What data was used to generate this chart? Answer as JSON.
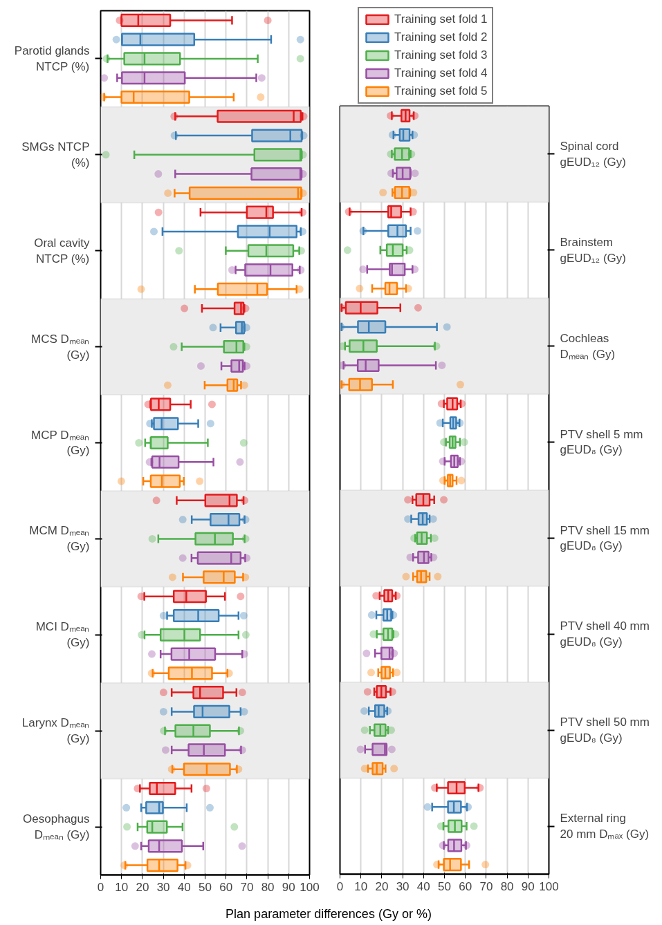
{
  "chart_data": [
    {
      "type": "box",
      "orientation": "horizontal",
      "xlabel": "Plan parameter differences (Gy or %)",
      "categories": [
        "Parotid glands\nNTCP (%)",
        "SMGs NTCP\n(%)",
        "Oral cavity\nNTCP (%)",
        "MCS Dₘₑₐₙ\n(Gy)",
        "MCP Dₘₑₐₙ\n(Gy)",
        "MCM Dₘₑₐₙ\n(Gy)",
        "MCI Dₘₑₐₙ\n(Gy)",
        "Larynx Dₘₑₐₙ\n(Gy)",
        "Oesophagus\nDₘₑₐₙ (Gy)"
      ],
      "xlim": [
        0,
        100
      ],
      "xticks": [
        0,
        10,
        20,
        30,
        40,
        50,
        60,
        70,
        80,
        90,
        100
      ],
      "grid": "x",
      "series": [
        {
          "color": "#e41a1c",
          "boxes": [
            {
              "low": 10.0,
              "q1": 10.0,
              "median": 18.0,
              "q3": 33.3,
              "high": 62.9,
              "outliers": [
                9.1,
                80.0
              ]
            },
            {
              "low": 35.7,
              "q1": 56.0,
              "median": 92.4,
              "q3": 95.8,
              "high": 96.6,
              "outliers": [
                35.2,
                97.2
              ]
            },
            {
              "low": 47.8,
              "q1": 70.0,
              "median": 79.3,
              "q3": 82.5,
              "high": 96.2,
              "outliers": [
                27.7,
                96.7
              ]
            },
            {
              "low": 48.5,
              "q1": 64.1,
              "median": 67.2,
              "q3": 68.4,
              "high": 68.8,
              "outliers": [
                40.1,
                69.4
              ]
            },
            {
              "low": 23.8,
              "q1": 24.1,
              "median": 27.8,
              "q3": 33.3,
              "high": 43.1,
              "outliers": [
                22.7,
                53.3
              ]
            },
            {
              "low": 36.4,
              "q1": 50.1,
              "median": 61.7,
              "q3": 65.2,
              "high": 68.4,
              "outliers": [
                26.7,
                68.9
              ]
            },
            {
              "low": 20.9,
              "q1": 35.0,
              "median": 41.0,
              "q3": 50.4,
              "high": 59.5,
              "outliers": [
                19.4,
                67.0
              ]
            },
            {
              "low": 34.0,
              "q1": 44.4,
              "median": 47.6,
              "q3": 58.6,
              "high": 65.0,
              "outliers": [
                30.1,
                67.8
              ]
            },
            {
              "low": 18.8,
              "q1": 23.5,
              "median": 26.9,
              "q3": 35.7,
              "high": 43.5,
              "outliers": [
                17.7,
                50.6
              ]
            }
          ]
        },
        {
          "color": "#377eb8",
          "boxes": [
            {
              "low": 10.2,
              "q1": 10.2,
              "median": 19.0,
              "q3": 44.8,
              "high": 81.6,
              "outliers": [
                7.5,
                95.6
              ]
            },
            {
              "low": 36.0,
              "q1": 72.5,
              "median": 90.8,
              "q3": 96.2,
              "high": 96.5,
              "outliers": [
                35.3,
                97.2
              ]
            },
            {
              "low": 29.6,
              "q1": 65.7,
              "median": 80.9,
              "q3": 93.8,
              "high": 95.8,
              "outliers": [
                25.5,
                96.7
              ]
            },
            {
              "low": 57.4,
              "q1": 64.8,
              "median": 67.6,
              "q3": 68.7,
              "high": 68.9,
              "outliers": [
                53.8,
                69.8
              ]
            },
            {
              "low": 24.5,
              "q1": 25.5,
              "median": 29.2,
              "q3": 37.0,
              "high": 46.7,
              "outliers": [
                23.6,
                52.6
              ]
            },
            {
              "low": 43.6,
              "q1": 52.6,
              "median": 61.2,
              "q3": 66.4,
              "high": 68.9,
              "outliers": [
                39.3,
                69.4
              ]
            },
            {
              "low": 31.8,
              "q1": 35.0,
              "median": 46.7,
              "q3": 56.5,
              "high": 66.0,
              "outliers": [
                30.1,
                68.5
              ]
            },
            {
              "low": 34.0,
              "q1": 44.7,
              "median": 48.8,
              "q3": 61.6,
              "high": 67.0,
              "outliers": [
                30.1,
                68.7
              ]
            },
            {
              "low": 19.4,
              "q1": 21.8,
              "median": 28.0,
              "q3": 29.8,
              "high": 41.2,
              "outliers": [
                12.3,
                52.3
              ]
            }
          ]
        },
        {
          "color": "#4daf4a",
          "boxes": [
            {
              "low": 3.3,
              "q1": 11.3,
              "median": 21.0,
              "q3": 38.0,
              "high": 75.2,
              "outliers": [
                2.8,
                95.6
              ]
            },
            {
              "low": 16.1,
              "q1": 73.6,
              "median": 95.6,
              "q3": 96.1,
              "high": 96.3,
              "outliers": [
                2.5,
                96.9
              ]
            },
            {
              "low": 59.9,
              "q1": 70.7,
              "median": 79.3,
              "q3": 92.2,
              "high": 95.1,
              "outliers": [
                37.5,
                96.0
              ]
            },
            {
              "low": 38.8,
              "q1": 59.0,
              "median": 65.0,
              "q3": 68.3,
              "high": 68.8,
              "outliers": [
                34.9,
                69.8
              ]
            },
            {
              "low": 21.3,
              "q1": 24.0,
              "median": 24.0,
              "q3": 32.1,
              "high": 51.3,
              "outliers": [
                18.3,
                68.5
              ]
            },
            {
              "low": 27.6,
              "q1": 45.4,
              "median": 54.7,
              "q3": 63.3,
              "high": 68.9,
              "outliers": [
                24.7,
                69.4
              ]
            },
            {
              "low": 21.0,
              "q1": 28.7,
              "median": 40.1,
              "q3": 47.6,
              "high": 66.0,
              "outliers": [
                19.6,
                69.5
              ]
            },
            {
              "low": 30.8,
              "q1": 35.8,
              "median": 44.4,
              "q3": 52.3,
              "high": 66.2,
              "outliers": [
                30.2,
                66.9
              ]
            },
            {
              "low": 17.7,
              "q1": 22.3,
              "median": 24.7,
              "q3": 31.7,
              "high": 39.2,
              "outliers": [
                12.6,
                64.0
              ]
            }
          ]
        },
        {
          "color": "#984ea3",
          "boxes": [
            {
              "low": 7.9,
              "q1": 10.2,
              "median": 21.0,
              "q3": 40.3,
              "high": 74.5,
              "outliers": [
                1.7,
                77.1
              ]
            },
            {
              "low": 35.7,
              "q1": 72.2,
              "median": 95.6,
              "q3": 96.0,
              "high": 96.2,
              "outliers": [
                27.6,
                96.9
              ]
            },
            {
              "low": 64.6,
              "q1": 69.2,
              "median": 81.3,
              "q3": 91.8,
              "high": 95.3,
              "outliers": [
                62.9,
                95.8
              ]
            },
            {
              "low": 57.8,
              "q1": 62.6,
              "median": 66.3,
              "q3": 68.1,
              "high": 68.9,
              "outliers": [
                48.0,
                69.9
              ]
            },
            {
              "low": 24.3,
              "q1": 24.7,
              "median": 28.2,
              "q3": 37.3,
              "high": 54.0,
              "outliers": [
                23.4,
                66.7
              ]
            },
            {
              "low": 43.5,
              "q1": 46.5,
              "median": 62.5,
              "q3": 67.0,
              "high": 69.2,
              "outliers": [
                39.3,
                69.9
              ]
            },
            {
              "low": 28.7,
              "q1": 33.9,
              "median": 42.4,
              "q3": 54.8,
              "high": 67.8,
              "outliers": [
                24.5,
                68.8
              ]
            },
            {
              "low": 34.0,
              "q1": 42.1,
              "median": 49.4,
              "q3": 59.5,
              "high": 67.2,
              "outliers": [
                31.1,
                67.8
              ]
            },
            {
              "low": 19.4,
              "q1": 23.0,
              "median": 28.0,
              "q3": 38.9,
              "high": 49.1,
              "outliers": [
                16.5,
                67.7
              ]
            }
          ]
        },
        {
          "color": "#ff7f00",
          "boxes": [
            {
              "low": 1.7,
              "q1": 10.0,
              "median": 15.8,
              "q3": 42.4,
              "high": 63.7,
              "outliers": [
                1.0,
                76.6
              ]
            },
            {
              "low": 35.4,
              "q1": 42.6,
              "median": 94.5,
              "q3": 96.0,
              "high": 96.2,
              "outliers": [
                32.2,
                96.9
              ]
            },
            {
              "low": 45.1,
              "q1": 56.1,
              "median": 75.0,
              "q3": 79.7,
              "high": 93.8,
              "outliers": [
                19.4,
                95.3
              ]
            },
            {
              "low": 49.8,
              "q1": 60.7,
              "median": 63.7,
              "q3": 65.4,
              "high": 67.2,
              "outliers": [
                32.1,
                68.8
              ]
            },
            {
              "low": 20.4,
              "q1": 24.0,
              "median": 29.3,
              "q3": 37.9,
              "high": 39.8,
              "outliers": [
                9.9,
                47.4
              ]
            },
            {
              "low": 39.4,
              "q1": 49.3,
              "median": 58.9,
              "q3": 64.2,
              "high": 68.2,
              "outliers": [
                34.4,
                69.3
              ]
            },
            {
              "low": 24.9,
              "q1": 32.6,
              "median": 43.7,
              "q3": 53.3,
              "high": 60.7,
              "outliers": [
                24.4,
                61.5
              ]
            },
            {
              "low": 34.3,
              "q1": 39.9,
              "median": 50.8,
              "q3": 61.9,
              "high": 65.2,
              "outliers": [
                34.0,
                66.0
              ]
            },
            {
              "low": 11.8,
              "q1": 22.4,
              "median": 28.0,
              "q3": 36.8,
              "high": 40.6,
              "outliers": [
                11.3,
                41.6
              ]
            }
          ]
        }
      ]
    },
    {
      "type": "box",
      "orientation": "horizontal",
      "legend": "top left",
      "categories": [
        "Spinal cord\ngEUD₁₂ (Gy)",
        "Brainstem\ngEUD₁₂ (Gy)",
        "Cochleas\nDₘₑₐₙ (Gy)",
        "PTV shell 5 mm\ngEUD₈ (Gy)",
        "PTV shell 15 mm\ngEUD₈ (Gy)",
        "PTV shell 40 mm\ngEUD₈ (Gy)",
        "PTV shell 50 mm\ngEUD₈ (Gy)",
        "External ring\n20 mm Dₘₐₓ (Gy)"
      ],
      "xlim": [
        0,
        100
      ],
      "xticks": [
        0,
        10,
        20,
        30,
        40,
        50,
        60,
        70,
        80,
        90,
        100
      ],
      "grid": "x",
      "series": [
        {
          "name": "Training set fold 1",
          "color": "#e41a1c",
          "boxes": [
            {
              "low": 24.8,
              "q1": 29.4,
              "median": 31.4,
              "q3": 33.3,
              "high": 35.3,
              "outliers": [
                24.2,
                35.8
              ]
            },
            {
              "low": 4.6,
              "q1": 23.1,
              "median": 24.5,
              "q3": 29.2,
              "high": 33.8,
              "outliers": [
                4.2,
                35.0
              ]
            },
            {
              "low": 0.8,
              "q1": 2.8,
              "median": 9.9,
              "q3": 17.9,
              "high": 28.9,
              "outliers": [
                0.6,
                37.4
              ]
            },
            {
              "low": 49.7,
              "q1": 51.3,
              "median": 53.9,
              "q3": 56.1,
              "high": 57.8,
              "outliers": [
                48.6,
                58.3
              ]
            },
            {
              "low": 34.7,
              "q1": 36.5,
              "median": 39.9,
              "q3": 42.9,
              "high": 45.1,
              "outliers": [
                32.5,
                49.7
              ]
            },
            {
              "low": 19.0,
              "q1": 21.2,
              "median": 23.1,
              "q3": 25.0,
              "high": 26.7,
              "outliers": [
                17.3,
                27.2
              ]
            },
            {
              "low": 16.4,
              "q1": 17.6,
              "median": 19.8,
              "q3": 22.0,
              "high": 24.2,
              "outliers": [
                13.2,
                25.1
              ]
            },
            {
              "low": 46.3,
              "q1": 51.7,
              "median": 55.8,
              "q3": 59.7,
              "high": 66.3,
              "outliers": [
                45.4,
                67.0
              ]
            }
          ]
        },
        {
          "name": "Training set fold 2",
          "color": "#377eb8",
          "boxes": [
            {
              "low": 25.6,
              "q1": 28.6,
              "median": 30.3,
              "q3": 33.3,
              "high": 34.7,
              "outliers": [
                25.1,
                35.5
              ]
            },
            {
              "low": 11.2,
              "q1": 23.1,
              "median": 27.5,
              "q3": 31.6,
              "high": 33.8,
              "outliers": [
                11.1,
                37.1
              ]
            },
            {
              "low": 0.8,
              "q1": 8.6,
              "median": 13.8,
              "q3": 21.7,
              "high": 46.4,
              "outliers": [
                0.4,
                51.2
              ]
            },
            {
              "low": 49.2,
              "q1": 52.8,
              "median": 54.2,
              "q3": 55.6,
              "high": 57.2,
              "outliers": [
                47.9,
                57.4
              ]
            },
            {
              "low": 34.1,
              "q1": 37.6,
              "median": 39.6,
              "q3": 41.6,
              "high": 42.9,
              "outliers": [
                32.5,
                44.6
              ]
            },
            {
              "low": 17.4,
              "q1": 20.8,
              "median": 22.6,
              "q3": 24.5,
              "high": 25.1,
              "outliers": [
                15.2,
                25.6
              ]
            },
            {
              "low": 13.8,
              "q1": 16.8,
              "median": 18.5,
              "q3": 21.2,
              "high": 22.6,
              "outliers": [
                11.6,
                22.9
              ]
            },
            {
              "low": 44.1,
              "q1": 51.7,
              "median": 54.5,
              "q3": 57.9,
              "high": 60.8,
              "outliers": [
                41.9,
                61.3
              ]
            }
          ]
        },
        {
          "name": "Training set fold 3",
          "color": "#4daf4a",
          "boxes": [
            {
              "low": 24.8,
              "q1": 26.2,
              "median": 29.7,
              "q3": 33.1,
              "high": 33.8,
              "outliers": [
                24.3,
                34.2
              ]
            },
            {
              "low": 19.3,
              "q1": 22.4,
              "median": 25.3,
              "q3": 30.0,
              "high": 31.9,
              "outliers": [
                3.6,
                33.3
              ]
            },
            {
              "low": 2.4,
              "q1": 4.6,
              "median": 11.2,
              "q3": 17.6,
              "high": 45.4,
              "outliers": [
                1.1,
                46.2
              ]
            },
            {
              "low": 50.7,
              "q1": 52.5,
              "median": 53.9,
              "q3": 55.3,
              "high": 57.4,
              "outliers": [
                49.7,
                59.5
              ]
            },
            {
              "low": 36.0,
              "q1": 36.9,
              "median": 39.1,
              "q3": 41.6,
              "high": 43.5,
              "outliers": [
                35.5,
                45.3
              ]
            },
            {
              "low": 17.6,
              "q1": 20.8,
              "median": 23.0,
              "q3": 25.0,
              "high": 25.6,
              "outliers": [
                16.0,
                26.6
              ]
            },
            {
              "low": 14.3,
              "q1": 16.5,
              "median": 19.3,
              "q3": 21.8,
              "high": 23.0,
              "outliers": [
                11.8,
                24.5
              ]
            },
            {
              "low": 49.5,
              "q1": 51.9,
              "median": 55.0,
              "q3": 58.2,
              "high": 60.6,
              "outliers": [
                48.3,
                64.1
              ]
            }
          ]
        },
        {
          "name": "Training set fold 4",
          "color": "#984ea3",
          "boxes": [
            {
              "low": 25.3,
              "q1": 27.1,
              "median": 30.0,
              "q3": 33.6,
              "high": 33.8,
              "outliers": [
                24.5,
                35.9
              ]
            },
            {
              "low": 13.0,
              "q1": 23.8,
              "median": 24.9,
              "q3": 31.0,
              "high": 34.7,
              "outliers": [
                11.0,
                35.8
              ]
            },
            {
              "low": 1.7,
              "q1": 8.5,
              "median": 12.3,
              "q3": 18.5,
              "high": 45.9,
              "outliers": [
                1.1,
                48.8
              ]
            },
            {
              "low": 50.1,
              "q1": 53.1,
              "median": 54.7,
              "q3": 56.4,
              "high": 57.4,
              "outliers": [
                49.2,
                58.1
              ]
            },
            {
              "low": 35.0,
              "q1": 37.4,
              "median": 40.2,
              "q3": 42.4,
              "high": 43.7,
              "outliers": [
                33.6,
                44.8
              ]
            },
            {
              "low": 16.8,
              "q1": 19.8,
              "median": 23.7,
              "q3": 25.1,
              "high": 25.3,
              "outliers": [
                12.7,
                25.9
              ]
            },
            {
              "low": 12.0,
              "q1": 15.6,
              "median": 21.5,
              "q3": 22.3,
              "high": 22.3,
              "outliers": [
                9.8,
                24.8
              ]
            },
            {
              "low": 49.7,
              "q1": 51.8,
              "median": 54.6,
              "q3": 58.1,
              "high": 60.3,
              "outliers": [
                49.2,
                60.6
              ]
            }
          ]
        },
        {
          "name": "Training set fold 5",
          "color": "#ff7f00",
          "boxes": [
            {
              "low": 25.1,
              "q1": 26.3,
              "median": 29.7,
              "q3": 33.2,
              "high": 33.6,
              "outliers": [
                20.6,
                35.2
              ]
            },
            {
              "low": 15.4,
              "q1": 21.7,
              "median": 23.7,
              "q3": 27.3,
              "high": 31.6,
              "outliers": [
                9.4,
                32.7
              ]
            },
            {
              "low": 0.8,
              "q1": 4.4,
              "median": 9.6,
              "q3": 15.3,
              "high": 25.3,
              "outliers": [
                0.6,
                57.6
              ]
            },
            {
              "low": 50.1,
              "q1": 51.6,
              "median": 52.7,
              "q3": 53.9,
              "high": 55.8,
              "outliers": [
                49.3,
                58.1
              ]
            },
            {
              "low": 35.0,
              "q1": 36.9,
              "median": 38.8,
              "q3": 41.3,
              "high": 42.9,
              "outliers": [
                31.6,
                46.8
              ]
            },
            {
              "low": 18.3,
              "q1": 19.9,
              "median": 21.7,
              "q3": 23.9,
              "high": 25.4,
              "outliers": [
                14.9,
                27.2
              ]
            },
            {
              "low": 13.4,
              "q1": 15.6,
              "median": 17.6,
              "q3": 20.4,
              "high": 21.8,
              "outliers": [
                11.8,
                25.9
              ]
            },
            {
              "low": 47.2,
              "q1": 49.7,
              "median": 52.7,
              "q3": 57.9,
              "high": 61.8,
              "outliers": [
                46.4,
                69.6
              ]
            }
          ]
        }
      ]
    }
  ]
}
